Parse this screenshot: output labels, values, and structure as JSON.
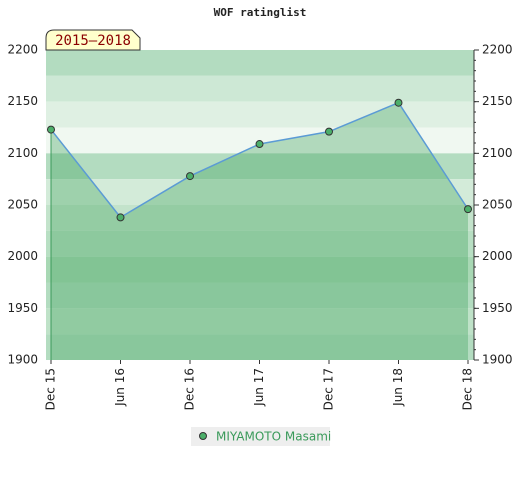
{
  "chart_data": {
    "type": "line",
    "title": "WOF ratinglist",
    "annotation": "2015–2018",
    "categories": [
      "Dec 15",
      "Jun 16",
      "Dec 16",
      "Jun 17",
      "Dec 17",
      "Jun 18",
      "Dec 18"
    ],
    "series": [
      {
        "name": "MIYAMOTO Masami",
        "color": "#5b9bd5",
        "marker_color": "#4caf6a",
        "values": [
          2123,
          2038,
          2078,
          2109,
          2121,
          2149,
          2046
        ]
      }
    ],
    "ylim": [
      1900,
      2200
    ],
    "yticks": [
      1900,
      1950,
      2000,
      2050,
      2100,
      2150,
      2200
    ]
  }
}
